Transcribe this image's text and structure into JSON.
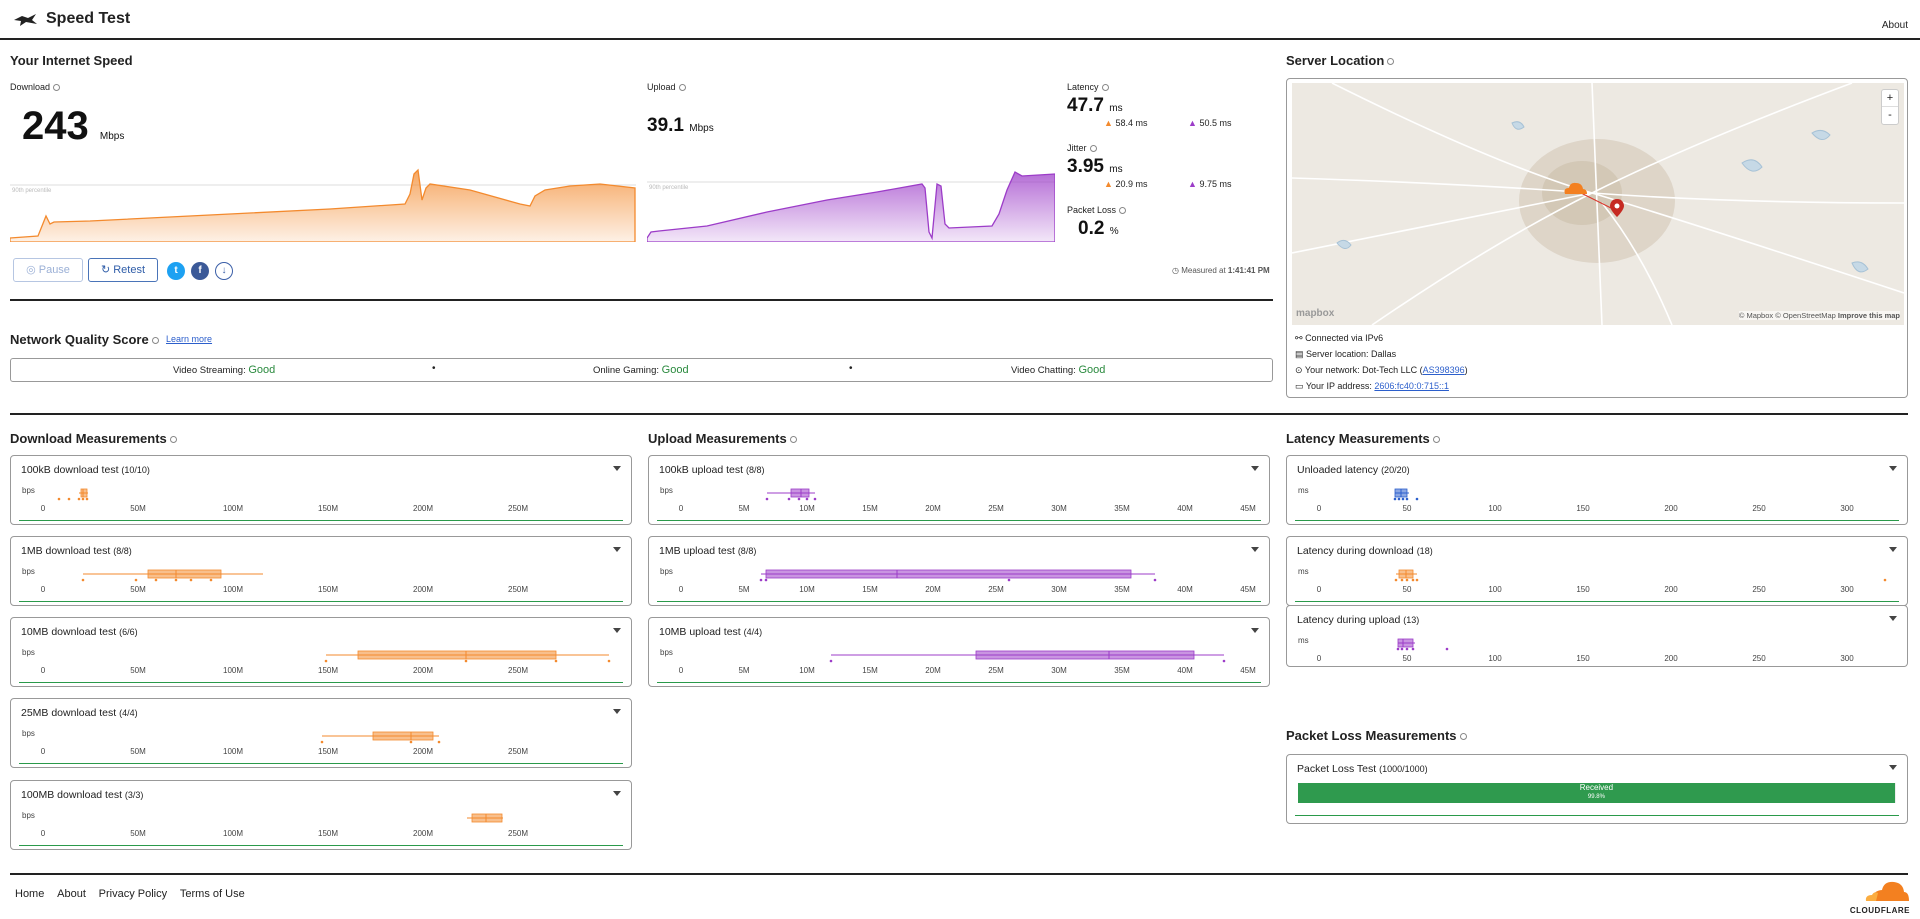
{
  "header": {
    "title": "Speed Test",
    "about": "About"
  },
  "speed": {
    "section_title": "Your Internet Speed",
    "download": {
      "label": "Download",
      "value": "243",
      "unit": "Mbps",
      "percentile_label": "90th percentile"
    },
    "upload": {
      "label": "Upload",
      "value": "39.1",
      "unit": "Mbps",
      "percentile_label": "90th percentile"
    },
    "latency": {
      "label": "Latency",
      "value": "47.7",
      "unit": "ms",
      "down": "58.4 ms",
      "up": "50.5 ms"
    },
    "jitter": {
      "label": "Jitter",
      "value": "3.95",
      "unit": "ms",
      "down": "20.9 ms",
      "up": "9.75 ms"
    },
    "packet_loss": {
      "label": "Packet Loss",
      "value": "0.2",
      "unit": "%"
    },
    "pause": "Pause",
    "retest": "Retest",
    "measured_prefix": "Measured at",
    "measured_time": "1:41:41 PM",
    "colors": {
      "download": "#f38a2e",
      "upload": "#9c3cc8"
    }
  },
  "server": {
    "title": "Server Location",
    "zoom_in": "+",
    "zoom_out": "-",
    "map_brand": "mapbox",
    "map_credit": "© Mapbox © OpenStreetMap",
    "improve": "Improve this map",
    "connected": "Connected via IPv6",
    "location": "Server location: Dallas",
    "network_prefix": "Your network: Dot-Tech LLC (",
    "network_asn": "AS398396",
    "network_suffix": ")",
    "ip_prefix": "Your IP address: ",
    "ip": "2606:fc40:0:715::1"
  },
  "nq": {
    "title": "Network Quality Score",
    "learn": "Learn more",
    "items": [
      {
        "label": "Video Streaming:",
        "value": "Good"
      },
      {
        "label": "Online Gaming:",
        "value": "Good"
      },
      {
        "label": "Video Chatting:",
        "value": "Good"
      }
    ]
  },
  "download_meas": {
    "title": "Download Measurements",
    "unit": "bps",
    "ticks": [
      "0",
      "50M",
      "100M",
      "150M",
      "200M",
      "250M"
    ],
    "tests": [
      {
        "title": "100kB download test",
        "count": "(10/10)"
      },
      {
        "title": "1MB download test",
        "count": "(8/8)"
      },
      {
        "title": "10MB download test",
        "count": "(6/6)"
      },
      {
        "title": "25MB download test",
        "count": "(4/4)"
      },
      {
        "title": "100MB download test",
        "count": "(3/3)"
      }
    ]
  },
  "upload_meas": {
    "title": "Upload Measurements",
    "unit": "bps",
    "ticks": [
      "0",
      "5M",
      "10M",
      "15M",
      "20M",
      "25M",
      "30M",
      "35M",
      "40M",
      "45M"
    ],
    "tests": [
      {
        "title": "100kB upload test",
        "count": "(8/8)"
      },
      {
        "title": "1MB upload test",
        "count": "(8/8)"
      },
      {
        "title": "10MB upload test",
        "count": "(4/4)"
      }
    ]
  },
  "latency_meas": {
    "title": "Latency Measurements",
    "unit": "ms",
    "ticks": [
      "0",
      "50",
      "100",
      "150",
      "200",
      "250",
      "300"
    ],
    "tests": [
      {
        "title": "Unloaded latency",
        "count": "(20/20)"
      },
      {
        "title": "Latency during download",
        "count": "(18)"
      },
      {
        "title": "Latency during upload",
        "count": "(13)"
      }
    ]
  },
  "packet_meas": {
    "title": "Packet Loss Measurements",
    "test_title": "Packet Loss Test",
    "test_count": "(1000/1000)",
    "received_label": "Received",
    "received_pct": "99.8%",
    "received_fraction": 0.998
  },
  "footer": {
    "links": [
      "Home",
      "About",
      "Privacy Policy",
      "Terms of Use"
    ],
    "brand": "CLOUDFLARE"
  }
}
